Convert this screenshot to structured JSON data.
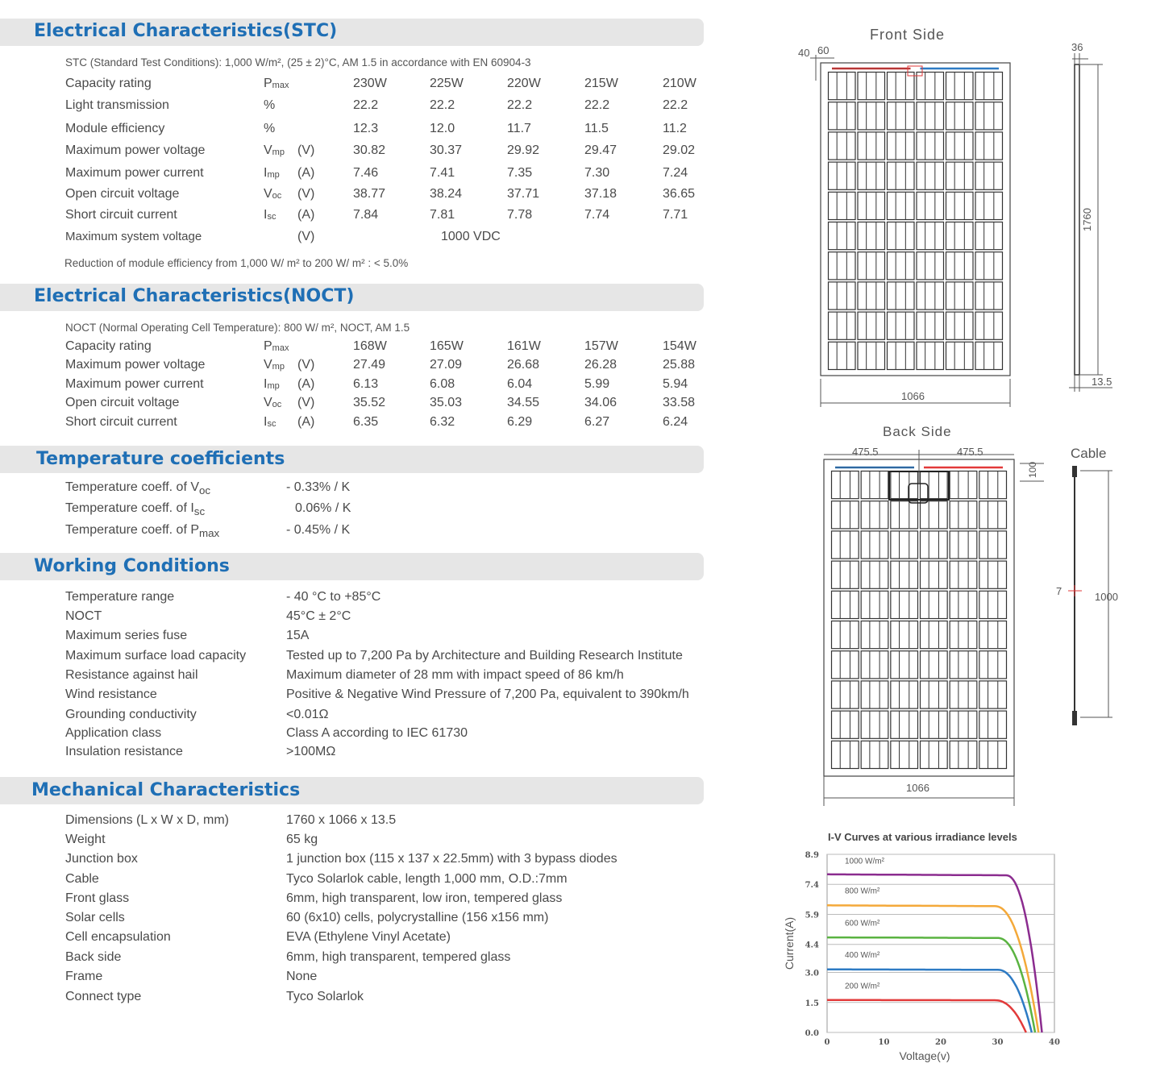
{
  "stc": {
    "title": "Electrical Characteristics(STC)",
    "note": "STC (Standard Test Conditions): 1,000 W/m², (25 ± 2)°C, AM 1.5 in accordance with EN 60904-3",
    "rows": [
      {
        "label": "Capacity rating",
        "sym": "P",
        "sub": "max",
        "unit": "",
        "values": [
          "230W",
          "225W",
          "220W",
          "215W",
          "210W"
        ]
      },
      {
        "label": "Light transmission",
        "sym": "%",
        "sub": "",
        "unit": "",
        "values": [
          "22.2",
          "22.2",
          "22.2",
          "22.2",
          "22.2"
        ]
      },
      {
        "label": "Module efficiency",
        "sym": "%",
        "sub": "",
        "unit": "",
        "values": [
          "12.3",
          "12.0",
          "11.7",
          "11.5",
          "11.2"
        ]
      },
      {
        "label": "Maximum power voltage",
        "sym": "V",
        "sub": "mp",
        "unit": "(V)",
        "values": [
          "30.82",
          "30.37",
          "29.92",
          "29.47",
          "29.02"
        ]
      },
      {
        "label": "Maximum power current",
        "sym": "I",
        "sub": "mp",
        "unit": "(A)",
        "values": [
          "7.46",
          "7.41",
          "7.35",
          "7.30",
          "7.24"
        ]
      },
      {
        "label": "Open circuit voltage",
        "sym": "V",
        "sub": "oc",
        "unit": "(V)",
        "values": [
          "38.77",
          "38.24",
          "37.71",
          "37.18",
          "36.65"
        ]
      },
      {
        "label": "Short circuit current",
        "sym": "I",
        "sub": "sc",
        "unit": "(A)",
        "values": [
          "7.84",
          "7.81",
          "7.78",
          "7.74",
          "7.71"
        ]
      }
    ],
    "system_voltage": {
      "label": "Maximum system voltage",
      "unit": "(V)",
      "value": "1000 VDC"
    },
    "footnote": "Reduction of module efficiency from 1,000 W/ m² to 200 W/ m² : < 5.0%"
  },
  "noct": {
    "title": "Electrical Characteristics(NOCT)",
    "note": "NOCT (Normal Operating Cell Temperature): 800 W/ m², NOCT, AM 1.5",
    "rows": [
      {
        "label": "Capacity rating",
        "sym": "P",
        "sub": "max",
        "unit": "",
        "values": [
          "168W",
          "165W",
          "161W",
          "157W",
          "154W"
        ]
      },
      {
        "label": "Maximum power voltage",
        "sym": "V",
        "sub": "mp",
        "unit": "(V)",
        "values": [
          "27.49",
          "27.09",
          "26.68",
          "26.28",
          "25.88"
        ]
      },
      {
        "label": "Maximum power current",
        "sym": "I",
        "sub": "mp",
        "unit": "(A)",
        "values": [
          "6.13",
          "6.08",
          "6.04",
          "5.99",
          "5.94"
        ]
      },
      {
        "label": "Open circuit voltage",
        "sym": "V",
        "sub": "oc",
        "unit": "(V)",
        "values": [
          "35.52",
          "35.03",
          "34.55",
          "34.06",
          "33.58"
        ]
      },
      {
        "label": "Short circuit current",
        "sym": "I",
        "sub": "sc",
        "unit": "(A)",
        "values": [
          "6.35",
          "6.32",
          "6.29",
          "6.27",
          "6.24"
        ]
      }
    ]
  },
  "temp": {
    "title": "Temperature coefficients",
    "rows": [
      {
        "label": "Temperature coeff. of V",
        "sub": "oc",
        "value": "- 0.33% / K"
      },
      {
        "label": "Temperature coeff. of I",
        "sub": "sc",
        "value": "0.06% / K"
      },
      {
        "label": "Temperature coeff. of P",
        "sub": "max",
        "value": "- 0.45% / K"
      }
    ]
  },
  "working": {
    "title": "Working Conditions",
    "rows": [
      {
        "label": "Temperature range",
        "value": "- 40 °C to +85°C"
      },
      {
        "label": "NOCT",
        "value": "45°C ± 2°C"
      },
      {
        "label": "Maximum series fuse",
        "value": "15A"
      },
      {
        "label": "Maximum surface load capacity",
        "value": "Tested up to 7,200 Pa by Architecture and Building Research Institute"
      },
      {
        "label": "Resistance against hail",
        "value": "Maximum diameter of 28 mm with impact speed of 86 km/h"
      },
      {
        "label": "Wind resistance",
        "value": "Positive & Negative Wind Pressure of 7,200 Pa, equivalent to 390km/h"
      },
      {
        "label": "Grounding conductivity",
        "value": "<0.01Ω"
      },
      {
        "label": "Application class",
        "value": "Class A according to IEC 61730"
      },
      {
        "label": "Insulation resistance",
        "value": ">100MΩ"
      }
    ]
  },
  "mechanical": {
    "title": "Mechanical Characteristics",
    "rows": [
      {
        "label": "Dimensions (L x W x D, mm)",
        "value": "1760 x 1066 x 13.5"
      },
      {
        "label": "Weight",
        "value": "65 kg"
      },
      {
        "label": "Junction box",
        "value": "1 junction box (115 x 137 x 22.5mm) with 3 bypass diodes"
      },
      {
        "label": "Cable",
        "value": "Tyco Solarlok cable, length 1,000 mm, O.D.:7mm"
      },
      {
        "label": "Front glass",
        "value": "6mm, high transparent, low iron, tempered glass"
      },
      {
        "label": "Solar cells",
        "value": "60 (6x10) cells, polycrystalline (156 x156 mm)"
      },
      {
        "label": "Cell encapsulation",
        "value": "EVA (Ethylene Vinyl Acetate)"
      },
      {
        "label": "Back side",
        "value": "6mm, high transparent, tempered glass"
      },
      {
        "label": "Frame",
        "value": "None"
      },
      {
        "label": "Connect type",
        "value": "Tyco Solarlok"
      }
    ]
  },
  "drawings": {
    "front_title": "Front Side",
    "back_title": "Back Side",
    "cable_title": "Cable",
    "dim_40": "40",
    "dim_60": "60",
    "dim_36": "36",
    "dim_1760": "1760",
    "dim_13_5": "13.5",
    "dim_1066_front": "1066",
    "dim_475_left": "475.5",
    "dim_475_right": "475.5",
    "dim_100": "100",
    "dim_7": "7",
    "dim_1000": "1000",
    "dim_1066_back": "1066"
  },
  "chart_data": {
    "type": "line",
    "title": "I-V Curves at various irradiance levels",
    "xlabel": "Voltage(v)",
    "ylabel": "Current(A)",
    "xlim": [
      0,
      40
    ],
    "ylim": [
      0,
      8.9
    ],
    "x_ticks": [
      "0",
      "10",
      "20",
      "30",
      "40"
    ],
    "y_ticks": [
      "0.0",
      "1.5",
      "3.0",
      "4.4",
      "5.9",
      "7.4",
      "8.9"
    ],
    "grid": true,
    "series": [
      {
        "name": "1000 W/m²",
        "color": "#8b2c8f",
        "isc": 7.9,
        "knee_v": 31.5,
        "voc": 37.8,
        "label_y": 8.6
      },
      {
        "name": "800 W/m²",
        "color": "#f4a93a",
        "isc": 6.35,
        "knee_v": 29.5,
        "voc": 37.2,
        "label_y": 7.1
      },
      {
        "name": "600 W/m²",
        "color": "#5ab341",
        "isc": 4.75,
        "knee_v": 30.0,
        "voc": 36.6,
        "label_y": 5.5
      },
      {
        "name": "400 W/m²",
        "color": "#2e7bc4",
        "isc": 3.15,
        "knee_v": 30.0,
        "voc": 36.0,
        "label_y": 3.9
      },
      {
        "name": "200 W/m²",
        "color": "#e23a3a",
        "isc": 1.62,
        "knee_v": 29.5,
        "voc": 35.0,
        "label_y": 2.35
      }
    ]
  }
}
